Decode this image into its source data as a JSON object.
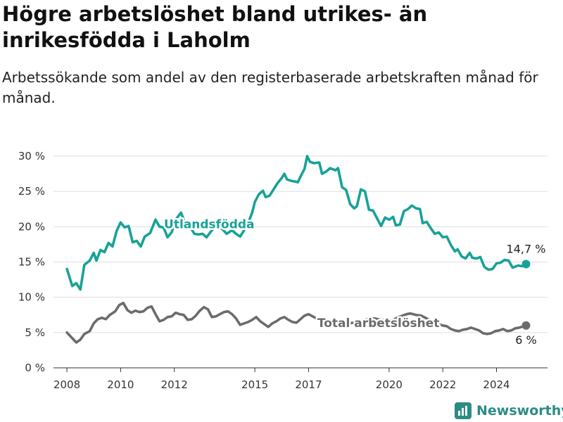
{
  "title": "Högre arbetslöshet bland utrikes- än inrikesfödda i Laholm",
  "subtitle": "Arbetssökande som andel av den registerbaserade arbetskraften månad för månad.",
  "brand": "Newsworthy",
  "colors": {
    "foreign": "#17a297",
    "total": "#6b6b6b",
    "grid": "#dddddd",
    "axis": "#333333",
    "brand": "#2c8c84"
  },
  "chart_data": {
    "type": "line",
    "ylim": [
      0,
      30
    ],
    "xlim": [
      2007.5,
      2025.9
    ],
    "y_ticks": [
      0,
      5,
      10,
      15,
      20,
      25,
      30
    ],
    "y_tick_labels": [
      "0 %",
      "5 %",
      "10 %",
      "15 %",
      "20 %",
      "25 %",
      "30 %"
    ],
    "x_ticks": [
      2008,
      2010,
      2012,
      2015,
      2017,
      2020,
      2022,
      2024
    ],
    "x_tick_labels": [
      "2008",
      "2010",
      "2012",
      "2015",
      "2017",
      "2020",
      "2022",
      "2024"
    ],
    "grid": true,
    "series": [
      {
        "name": "Utlandsfödda",
        "color": "#17a297",
        "end_label": "14,7 %",
        "points": [
          [
            2008.0,
            14.0
          ],
          [
            2008.2,
            11.6
          ],
          [
            2008.35,
            12.0
          ],
          [
            2008.5,
            11.1
          ],
          [
            2008.65,
            14.6
          ],
          [
            2008.85,
            15.2
          ],
          [
            2009.0,
            16.3
          ],
          [
            2009.1,
            15.2
          ],
          [
            2009.25,
            16.7
          ],
          [
            2009.4,
            16.4
          ],
          [
            2009.55,
            17.7
          ],
          [
            2009.7,
            17.2
          ],
          [
            2009.85,
            19.4
          ],
          [
            2010.0,
            20.6
          ],
          [
            2010.15,
            19.9
          ],
          [
            2010.3,
            20.1
          ],
          [
            2010.45,
            17.8
          ],
          [
            2010.6,
            18.0
          ],
          [
            2010.75,
            17.2
          ],
          [
            2010.9,
            18.6
          ],
          [
            2011.1,
            19.1
          ],
          [
            2011.3,
            21.0
          ],
          [
            2011.45,
            20.0
          ],
          [
            2011.6,
            19.9
          ],
          [
            2011.75,
            18.5
          ],
          [
            2011.9,
            19.2
          ],
          [
            2012.05,
            21.0
          ],
          [
            2012.25,
            22.0
          ],
          [
            2012.4,
            20.5
          ],
          [
            2012.55,
            20.2
          ],
          [
            2012.75,
            19.0
          ],
          [
            2012.9,
            18.9
          ],
          [
            2013.05,
            19.0
          ],
          [
            2013.2,
            18.5
          ],
          [
            2013.4,
            19.5
          ],
          [
            2013.6,
            20.2
          ],
          [
            2013.8,
            19.6
          ],
          [
            2013.95,
            19.0
          ],
          [
            2014.15,
            19.5
          ],
          [
            2014.3,
            19.0
          ],
          [
            2014.45,
            18.6
          ],
          [
            2014.6,
            19.5
          ],
          [
            2014.75,
            20.5
          ],
          [
            2014.9,
            22.0
          ],
          [
            2015.0,
            23.5
          ],
          [
            2015.15,
            24.6
          ],
          [
            2015.3,
            25.1
          ],
          [
            2015.4,
            24.2
          ],
          [
            2015.55,
            24.4
          ],
          [
            2015.7,
            25.3
          ],
          [
            2015.85,
            26.2
          ],
          [
            2016.0,
            26.9
          ],
          [
            2016.1,
            27.5
          ],
          [
            2016.2,
            26.7
          ],
          [
            2016.35,
            26.5
          ],
          [
            2016.5,
            26.4
          ],
          [
            2016.6,
            26.3
          ],
          [
            2016.7,
            27.1
          ],
          [
            2016.85,
            28.2
          ],
          [
            2016.95,
            30.0
          ],
          [
            2017.05,
            29.2
          ],
          [
            2017.2,
            29.0
          ],
          [
            2017.4,
            29.1
          ],
          [
            2017.5,
            27.5
          ],
          [
            2017.65,
            27.8
          ],
          [
            2017.8,
            28.3
          ],
          [
            2018.0,
            28.0
          ],
          [
            2018.1,
            28.3
          ],
          [
            2018.25,
            25.6
          ],
          [
            2018.4,
            25.2
          ],
          [
            2018.55,
            23.2
          ],
          [
            2018.7,
            22.6
          ],
          [
            2018.8,
            22.9
          ],
          [
            2018.95,
            25.3
          ],
          [
            2019.1,
            25.0
          ],
          [
            2019.25,
            22.4
          ],
          [
            2019.4,
            22.3
          ],
          [
            2019.55,
            21.2
          ],
          [
            2019.7,
            20.1
          ],
          [
            2019.85,
            21.3
          ],
          [
            2020.0,
            21.0
          ],
          [
            2020.15,
            21.4
          ],
          [
            2020.25,
            20.2
          ],
          [
            2020.4,
            20.3
          ],
          [
            2020.55,
            22.2
          ],
          [
            2020.7,
            22.5
          ],
          [
            2020.85,
            23.0
          ],
          [
            2021.0,
            22.6
          ],
          [
            2021.15,
            22.5
          ],
          [
            2021.25,
            20.5
          ],
          [
            2021.4,
            20.7
          ],
          [
            2021.55,
            19.8
          ],
          [
            2021.7,
            19.0
          ],
          [
            2021.85,
            19.2
          ],
          [
            2022.0,
            18.5
          ],
          [
            2022.15,
            18.6
          ],
          [
            2022.3,
            17.4
          ],
          [
            2022.45,
            16.5
          ],
          [
            2022.55,
            16.8
          ],
          [
            2022.7,
            15.8
          ],
          [
            2022.85,
            15.5
          ],
          [
            2023.0,
            16.3
          ],
          [
            2023.1,
            15.6
          ],
          [
            2023.25,
            15.5
          ],
          [
            2023.4,
            15.7
          ],
          [
            2023.55,
            14.3
          ],
          [
            2023.7,
            13.9
          ],
          [
            2023.85,
            14.0
          ],
          [
            2024.0,
            14.8
          ],
          [
            2024.15,
            14.9
          ],
          [
            2024.3,
            15.3
          ],
          [
            2024.45,
            15.2
          ],
          [
            2024.6,
            14.2
          ],
          [
            2024.8,
            14.5
          ],
          [
            2024.95,
            14.4
          ],
          [
            2025.1,
            14.7
          ]
        ]
      },
      {
        "name": "Total arbetslöshet",
        "color": "#6b6b6b",
        "end_label": "6 %",
        "points": [
          [
            2008.0,
            5.0
          ],
          [
            2008.2,
            4.2
          ],
          [
            2008.35,
            3.6
          ],
          [
            2008.5,
            4.0
          ],
          [
            2008.65,
            4.8
          ],
          [
            2008.85,
            5.2
          ],
          [
            2009.0,
            6.3
          ],
          [
            2009.15,
            6.9
          ],
          [
            2009.3,
            7.1
          ],
          [
            2009.45,
            6.9
          ],
          [
            2009.6,
            7.5
          ],
          [
            2009.8,
            8.0
          ],
          [
            2009.95,
            8.9
          ],
          [
            2010.1,
            9.2
          ],
          [
            2010.25,
            8.2
          ],
          [
            2010.4,
            7.8
          ],
          [
            2010.55,
            8.1
          ],
          [
            2010.7,
            7.9
          ],
          [
            2010.85,
            8.0
          ],
          [
            2011.0,
            8.5
          ],
          [
            2011.15,
            8.7
          ],
          [
            2011.3,
            7.6
          ],
          [
            2011.45,
            6.6
          ],
          [
            2011.6,
            6.8
          ],
          [
            2011.75,
            7.2
          ],
          [
            2011.9,
            7.3
          ],
          [
            2012.05,
            7.8
          ],
          [
            2012.2,
            7.6
          ],
          [
            2012.35,
            7.5
          ],
          [
            2012.5,
            6.8
          ],
          [
            2012.65,
            6.9
          ],
          [
            2012.8,
            7.4
          ],
          [
            2012.95,
            8.1
          ],
          [
            2013.1,
            8.6
          ],
          [
            2013.25,
            8.3
          ],
          [
            2013.4,
            7.2
          ],
          [
            2013.55,
            7.3
          ],
          [
            2013.7,
            7.6
          ],
          [
            2013.85,
            7.9
          ],
          [
            2014.0,
            8.0
          ],
          [
            2014.15,
            7.6
          ],
          [
            2014.3,
            7.0
          ],
          [
            2014.45,
            6.1
          ],
          [
            2014.6,
            6.3
          ],
          [
            2014.75,
            6.5
          ],
          [
            2014.9,
            6.8
          ],
          [
            2015.05,
            7.2
          ],
          [
            2015.2,
            6.6
          ],
          [
            2015.35,
            6.2
          ],
          [
            2015.5,
            5.8
          ],
          [
            2015.65,
            6.3
          ],
          [
            2015.8,
            6.6
          ],
          [
            2015.95,
            7.0
          ],
          [
            2016.1,
            7.2
          ],
          [
            2016.25,
            6.8
          ],
          [
            2016.4,
            6.5
          ],
          [
            2016.55,
            6.4
          ],
          [
            2016.7,
            6.9
          ],
          [
            2016.85,
            7.4
          ],
          [
            2017.0,
            7.6
          ],
          [
            2017.2,
            7.2
          ],
          [
            2017.45,
            6.7
          ],
          [
            2017.7,
            6.6
          ],
          [
            2017.95,
            6.5
          ],
          [
            2018.2,
            6.4
          ],
          [
            2018.45,
            6.3
          ],
          [
            2018.7,
            6.4
          ],
          [
            2018.95,
            6.6
          ],
          [
            2019.2,
            6.9
          ],
          [
            2019.45,
            7.0
          ],
          [
            2019.7,
            6.8
          ],
          [
            2019.95,
            6.7
          ],
          [
            2020.15,
            6.8
          ],
          [
            2020.35,
            7.2
          ],
          [
            2020.5,
            7.4
          ],
          [
            2020.65,
            7.6
          ],
          [
            2020.8,
            7.7
          ],
          [
            2021.0,
            7.5
          ],
          [
            2021.2,
            7.4
          ],
          [
            2021.4,
            7.0
          ],
          [
            2021.6,
            6.6
          ],
          [
            2021.8,
            6.2
          ],
          [
            2022.0,
            6.0
          ],
          [
            2022.15,
            5.9
          ],
          [
            2022.3,
            5.5
          ],
          [
            2022.45,
            5.3
          ],
          [
            2022.6,
            5.2
          ],
          [
            2022.75,
            5.4
          ],
          [
            2022.9,
            5.5
          ],
          [
            2023.05,
            5.7
          ],
          [
            2023.2,
            5.5
          ],
          [
            2023.35,
            5.3
          ],
          [
            2023.5,
            4.9
          ],
          [
            2023.65,
            4.8
          ],
          [
            2023.8,
            4.9
          ],
          [
            2023.95,
            5.2
          ],
          [
            2024.1,
            5.3
          ],
          [
            2024.25,
            5.5
          ],
          [
            2024.4,
            5.2
          ],
          [
            2024.55,
            5.3
          ],
          [
            2024.7,
            5.6
          ],
          [
            2024.85,
            5.7
          ],
          [
            2025.1,
            6.0
          ]
        ]
      }
    ],
    "annotations": [
      {
        "text": "Utlandsfödda",
        "series": 0
      },
      {
        "text": "Total arbetslöshet",
        "series": 1
      }
    ]
  }
}
